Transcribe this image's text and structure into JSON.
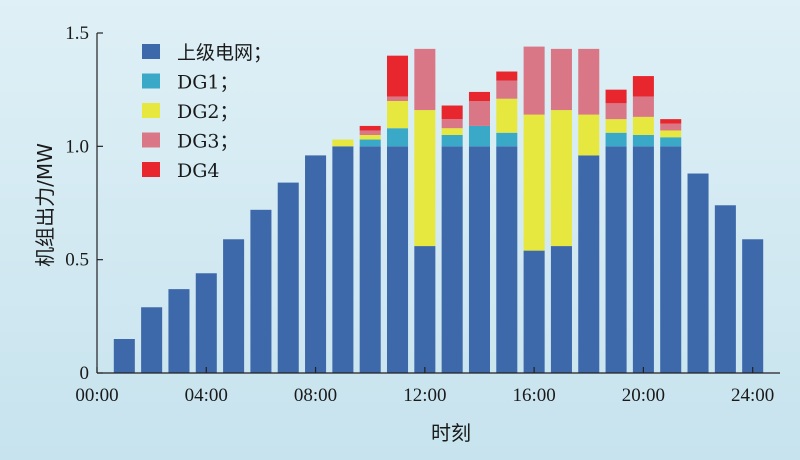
{
  "chart_data": {
    "type": "bar",
    "stacked": true,
    "xlabel": "时刻",
    "ylabel": "机组出力/MW",
    "ylim": [
      0,
      1.5
    ],
    "yticks": [
      {
        "value": 0,
        "label": "0"
      },
      {
        "value": 0.5,
        "label": "0.5"
      },
      {
        "value": 1.0,
        "label": "1.0"
      },
      {
        "value": 1.5,
        "label": "1.5"
      }
    ],
    "xlim": [
      0,
      25
    ],
    "xticks": [
      {
        "value": 0,
        "label": "00:00"
      },
      {
        "value": 4,
        "label": "04:00"
      },
      {
        "value": 8,
        "label": "08:00"
      },
      {
        "value": 12,
        "label": "12:00"
      },
      {
        "value": 16,
        "label": "16:00"
      },
      {
        "value": 20,
        "label": "20:00"
      },
      {
        "value": 24,
        "label": "24:00"
      }
    ],
    "legend_position": "top-left",
    "categories": [
      1,
      2,
      3,
      4,
      5,
      6,
      7,
      8,
      9,
      10,
      11,
      12,
      13,
      14,
      15,
      16,
      17,
      18,
      19,
      20,
      21,
      22,
      23,
      24
    ],
    "series": [
      {
        "name": "上级电网；",
        "color": "#3d68aa",
        "values": [
          0.15,
          0.29,
          0.37,
          0.44,
          0.59,
          0.72,
          0.84,
          0.96,
          1.0,
          1.0,
          1.0,
          0.56,
          1.0,
          1.0,
          1.0,
          0.54,
          0.56,
          0.96,
          1.0,
          1.0,
          1.0,
          0.88,
          0.74,
          0.59
        ]
      },
      {
        "name": "DG1；",
        "color": "#3aa9c8",
        "values": [
          0,
          0,
          0,
          0,
          0,
          0,
          0,
          0,
          0,
          0.03,
          0.08,
          0,
          0.05,
          0.09,
          0.06,
          0,
          0,
          0,
          0.06,
          0.05,
          0.04,
          0,
          0,
          0
        ]
      },
      {
        "name": "DG2；",
        "color": "#e6e840",
        "values": [
          0,
          0,
          0,
          0,
          0,
          0,
          0,
          0,
          0.03,
          0.02,
          0.12,
          0.6,
          0.03,
          0,
          0.15,
          0.6,
          0.6,
          0.18,
          0.06,
          0.08,
          0.03,
          0,
          0,
          0
        ]
      },
      {
        "name": "DG3；",
        "color": "#d97786",
        "values": [
          0,
          0,
          0,
          0,
          0,
          0,
          0,
          0,
          0,
          0.02,
          0.02,
          0.27,
          0.04,
          0.11,
          0.08,
          0.3,
          0.27,
          0.29,
          0.07,
          0.09,
          0.03,
          0,
          0,
          0
        ]
      },
      {
        "name": "DG4",
        "color": "#e8262d",
        "values": [
          0,
          0,
          0,
          0,
          0,
          0,
          0,
          0,
          0,
          0.02,
          0.18,
          0,
          0.06,
          0.04,
          0.04,
          0,
          0,
          0,
          0.06,
          0.09,
          0.02,
          0,
          0,
          0
        ]
      }
    ]
  }
}
